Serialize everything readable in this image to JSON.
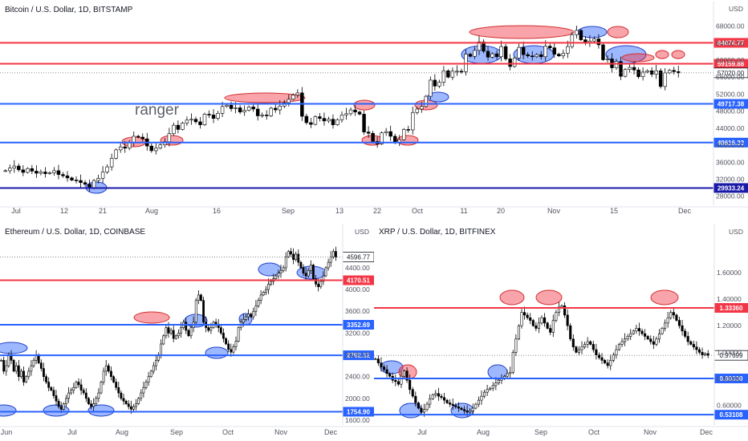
{
  "chart_data": [
    {
      "type": "candlestick",
      "title": "Bitcoin / U.S. Dollar, 1D, BITSTAMP",
      "currency": "USD",
      "annotation": "ranger",
      "xticks": [
        "Jul",
        "12",
        "21",
        "Aug",
        "16",
        "Sep",
        "13",
        "22",
        "Oct",
        "11",
        "20",
        "Nov",
        "15",
        "Dec"
      ],
      "yticks": [
        "28000.00",
        "32000.00",
        "36000.00",
        "40000.00",
        "44000.00",
        "48000.00",
        "52000.00",
        "56000.00",
        "60000.00",
        "64000.00",
        "68000.00"
      ],
      "ylim": [
        27000,
        70000
      ],
      "levels": [
        {
          "value": 64074.77,
          "label": "64074.77",
          "color": "#f23645"
        },
        {
          "value": 59159.88,
          "label": "59159.88",
          "color": "#f23645"
        },
        {
          "value": 49717.38,
          "label": "49717.38",
          "color": "#2962ff"
        },
        {
          "value": 40616.33,
          "label": "40616.33",
          "color": "#2962ff"
        },
        {
          "value": 29933.24,
          "label": "29933.24",
          "color": "#1a1aa8"
        }
      ],
      "current": {
        "value": 57020.0,
        "label": "57020.00"
      },
      "close": [
        34000,
        34600,
        35100,
        34200,
        33600,
        34500,
        33900,
        33400,
        33700,
        33300,
        33500,
        34000,
        33100,
        32800,
        32300,
        31800,
        31700,
        31200,
        30800,
        29900,
        31700,
        32200,
        33700,
        34900,
        36900,
        38900,
        39600,
        39300,
        40600,
        42100,
        41900,
        41500,
        39800,
        38700,
        39300,
        40100,
        40800,
        42700,
        44700,
        43700,
        45200,
        45900,
        46100,
        45500,
        44800,
        47300,
        47100,
        46300,
        47500,
        49100,
        49400,
        48600,
        48800,
        47800,
        48200,
        49000,
        48500,
        46900,
        47100,
        46900,
        48700,
        48300,
        49200,
        50000,
        50800,
        51800,
        52300,
        46800,
        45300,
        44900,
        46700,
        46300,
        45700,
        46100,
        44800,
        46000,
        47100,
        47400,
        48300,
        47800,
        47300,
        43100,
        42800,
        40900,
        40300,
        42900,
        43200,
        42100,
        40700,
        41300,
        43700,
        43600,
        47700,
        48500,
        49100,
        51500,
        55300,
        53900,
        54800,
        57500,
        56000,
        57400,
        57400,
        57300,
        61400,
        60900,
        62300,
        64300,
        62100,
        60700,
        61500,
        60800,
        63200,
        60300,
        58500,
        60500,
        63000,
        61300,
        61000,
        60800,
        61300,
        60800,
        63300,
        62900,
        61400,
        61000,
        61600,
        63200,
        66000,
        67000,
        64800,
        64200,
        64500,
        65000,
        63600,
        60100,
        60300,
        58200,
        59700,
        56200,
        57800,
        58300,
        57700,
        56100,
        57200,
        57500,
        56700,
        57500,
        53800,
        57000,
        57600,
        57300,
        57020
      ]
    },
    {
      "type": "candlestick",
      "title": "Ethereum / U.S. Dollar, 1D, COINBASE",
      "currency": "USD",
      "xticks": [
        "Jun",
        "Jul",
        "Aug",
        "Sep",
        "Oct",
        "Nov",
        "Dec"
      ],
      "yticks": [
        "1600.00",
        "2000.00",
        "2400.00",
        "2800.00",
        "3200.00",
        "3600.00",
        "4000.00",
        "4400.00"
      ],
      "ylim": [
        1600,
        4900
      ],
      "levels": [
        {
          "value": 4170.51,
          "label": "4170.51",
          "color": "#f23645"
        },
        {
          "value": 3352.69,
          "label": "3352.69",
          "color": "#2962ff"
        },
        {
          "value": 2792.32,
          "label": "2792.32",
          "color": "#2962ff"
        },
        {
          "value": 1754.9,
          "label": "1754.90",
          "color": "#2962ff"
        }
      ],
      "current": {
        "value": 4596.77,
        "label": "4596.77"
      },
      "close": [
        2700,
        2500,
        2600,
        2800,
        2700,
        2500,
        2600,
        2400,
        2500,
        2300,
        2400,
        2500,
        2600,
        2700,
        2800,
        2650,
        2550,
        2400,
        2300,
        2200,
        2150,
        2050,
        1950,
        1850,
        1800,
        1900,
        2000,
        2100,
        2150,
        2200,
        2300,
        2250,
        2150,
        2100,
        2000,
        1900,
        1850,
        1900,
        2000,
        2100,
        2300,
        2500,
        2600,
        2500,
        2400,
        2300,
        2200,
        2100,
        2000,
        1950,
        1900,
        1850,
        1800,
        1850,
        1900,
        2000,
        2100,
        2200,
        2300,
        2400,
        2500,
        2600,
        2700,
        2800,
        3000,
        3150,
        3300,
        3200,
        3250,
        3100,
        3150,
        3200,
        3300,
        3400,
        3250,
        3150,
        3300,
        3400,
        3800,
        3900,
        3800,
        3400,
        3300,
        3250,
        3300,
        3400,
        3350,
        3300,
        3200,
        3100,
        3000,
        2900,
        2850,
        2950,
        3050,
        3300,
        3400,
        3450,
        3500,
        3550,
        3500,
        3600,
        3700,
        3800,
        3900,
        3950,
        4000,
        4100,
        4150,
        4200,
        4250,
        4300,
        4350,
        4400,
        4600,
        4700,
        4650,
        4550,
        4650,
        4500,
        4400,
        4300,
        4250,
        4350,
        4450,
        4200,
        4100,
        4050,
        4150,
        4250,
        4400,
        4500,
        4600,
        4700,
        4596.77
      ]
    },
    {
      "type": "candlestick",
      "title": "XRP / U.S. Dollar, 1D, BITFINEX",
      "currency": "USD",
      "xticks": [
        "Jul",
        "Aug",
        "Sep",
        "Oct",
        "Nov",
        "Dec"
      ],
      "yticks": [
        "0.60000",
        "0.80000",
        "1.00000",
        "1.20000",
        "1.40000",
        "1.60000"
      ],
      "ylim": [
        0.49,
        1.84
      ],
      "levels": [
        {
          "value": 1.3336,
          "label": "1.33360",
          "color": "#f23645"
        },
        {
          "value": 0.8033,
          "label": "0.80330",
          "color": "#2962ff"
        },
        {
          "value": 0.53108,
          "label": "0.53108",
          "color": "#2962ff"
        }
      ],
      "current": {
        "value": 0.97699,
        "label": "0.97699"
      },
      "close": [
        0.95,
        0.92,
        0.89,
        0.87,
        0.84,
        0.82,
        0.79,
        0.78,
        0.76,
        0.82,
        0.86,
        0.79,
        0.72,
        0.67,
        0.62,
        0.58,
        0.55,
        0.57,
        0.61,
        0.65,
        0.68,
        0.69,
        0.67,
        0.66,
        0.64,
        0.62,
        0.61,
        0.6,
        0.59,
        0.58,
        0.57,
        0.56,
        0.55,
        0.56,
        0.58,
        0.61,
        0.64,
        0.67,
        0.7,
        0.72,
        0.73,
        0.75,
        0.77,
        0.79,
        0.8,
        0.82,
        0.84,
        0.85,
        1.0,
        1.1,
        1.2,
        1.3,
        1.28,
        1.26,
        1.24,
        1.2,
        1.18,
        1.22,
        1.26,
        1.22,
        1.18,
        1.15,
        1.24,
        1.3,
        1.34,
        1.35,
        1.28,
        1.2,
        1.1,
        1.04,
        1.0,
        1.02,
        1.04,
        1.06,
        1.08,
        1.06,
        1.02,
        0.98,
        0.96,
        0.94,
        0.92,
        0.9,
        0.94,
        0.98,
        1.02,
        1.06,
        1.08,
        1.1,
        1.12,
        1.14,
        1.16,
        1.18,
        1.16,
        1.14,
        1.12,
        1.1,
        1.08,
        1.06,
        1.1,
        1.14,
        1.18,
        1.22,
        1.26,
        1.3,
        1.28,
        1.24,
        1.2,
        1.16,
        1.12,
        1.08,
        1.06,
        1.04,
        1.02,
        1.0,
        0.98,
        0.99,
        0.97699
      ]
    }
  ]
}
